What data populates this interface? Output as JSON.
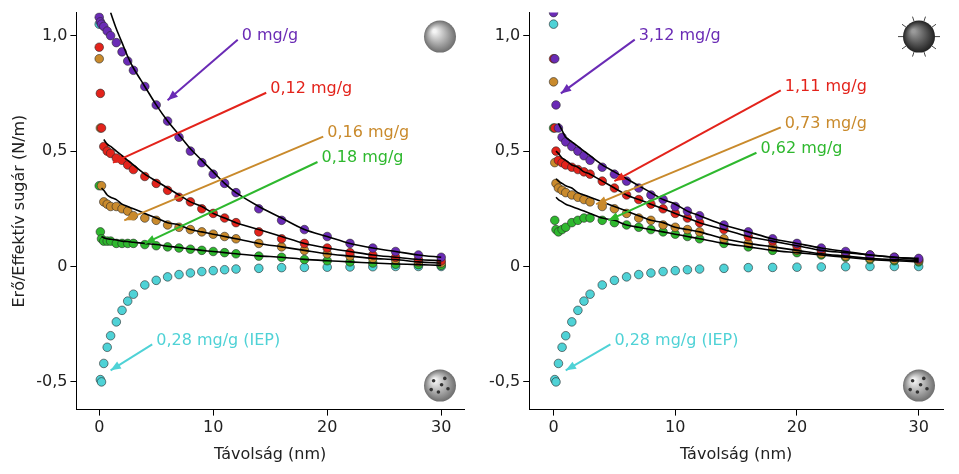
{
  "chart_data": [
    {
      "type": "scatter",
      "marker": "circle",
      "grid": false,
      "x_label": "Távolság (nm)",
      "y_label": "Erő/Effektív sugár (N/m)",
      "xlim": [
        -2,
        32
      ],
      "ylim": [
        -0.62,
        1.1
      ],
      "xticks": [
        0,
        10,
        20,
        30
      ],
      "yticks": [
        {
          "value": -0.5,
          "label": "-0,5"
        },
        0,
        {
          "value": 0.5,
          "label": "0,5"
        },
        {
          "value": 1,
          "label": "1,0"
        }
      ],
      "x": [
        0,
        0.1,
        0.2,
        0.4,
        0.7,
        1,
        1.5,
        2,
        2.5,
        3,
        4,
        5,
        6,
        7,
        8,
        9,
        10,
        11,
        12,
        14,
        16,
        18,
        20,
        22,
        24,
        26,
        28,
        30
      ],
      "series": [
        {
          "name": "0 mg/g",
          "color": "#6a2bb5",
          "values": [
            1.08,
            1.06,
            1.05,
            1.04,
            1.02,
            1.0,
            0.97,
            0.93,
            0.89,
            0.85,
            0.78,
            0.7,
            0.63,
            0.56,
            0.5,
            0.45,
            0.4,
            0.36,
            0.32,
            0.25,
            0.2,
            0.16,
            0.13,
            0.1,
            0.08,
            0.065,
            0.05,
            0.04
          ],
          "fit": [
            null,
            null,
            null,
            null,
            null,
            1.1,
            1.03,
            0.97,
            0.91,
            0.86,
            0.78,
            0.7,
            0.63,
            0.57,
            0.51,
            0.46,
            0.41,
            0.36,
            0.32,
            0.26,
            0.21,
            0.16,
            0.13,
            0.1,
            0.08,
            0.065,
            0.05,
            0.04
          ]
        },
        {
          "name": "0,12 mg/g",
          "color": "#e3231b",
          "values": [
            0.95,
            0.75,
            0.6,
            0.52,
            0.5,
            0.49,
            0.47,
            0.46,
            0.44,
            0.42,
            0.39,
            0.36,
            0.33,
            0.3,
            0.28,
            0.25,
            0.23,
            0.21,
            0.19,
            0.15,
            0.12,
            0.1,
            0.08,
            0.06,
            0.05,
            0.04,
            0.03,
            0.025
          ],
          "fit": [
            null,
            null,
            null,
            0.55,
            0.53,
            0.52,
            0.5,
            0.48,
            0.46,
            0.44,
            0.4,
            0.37,
            0.34,
            0.31,
            0.28,
            0.26,
            0.23,
            0.21,
            0.19,
            0.16,
            0.13,
            0.1,
            0.08,
            0.065,
            0.05,
            0.04,
            0.03,
            0.025
          ]
        },
        {
          "name": "0,16 mg/g",
          "color": "#c98a2c",
          "values": [
            0.9,
            0.6,
            0.35,
            0.28,
            0.27,
            0.26,
            0.26,
            0.25,
            0.24,
            0.22,
            0.21,
            0.2,
            0.18,
            0.17,
            0.16,
            0.15,
            0.14,
            0.13,
            0.12,
            0.1,
            0.085,
            0.07,
            0.055,
            0.045,
            0.035,
            0.03,
            0.02,
            0.015
          ],
          "fit": [
            null,
            null,
            0.34,
            0.33,
            0.31,
            0.3,
            0.29,
            0.27,
            0.26,
            0.25,
            0.23,
            0.21,
            0.19,
            0.18,
            0.16,
            0.15,
            0.14,
            0.13,
            0.12,
            0.1,
            0.085,
            0.07,
            0.055,
            0.045,
            0.035,
            0.03,
            0.02,
            0.015
          ]
        },
        {
          "name": "0,18 mg/g",
          "color": "#2eb82e",
          "values": [
            0.35,
            0.15,
            0.12,
            0.11,
            0.11,
            0.11,
            0.1,
            0.1,
            0.1,
            0.1,
            0.095,
            0.09,
            0.085,
            0.08,
            0.075,
            0.07,
            0.065,
            0.06,
            0.055,
            0.045,
            0.04,
            0.03,
            0.025,
            0.02,
            0.015,
            0.01,
            0.008,
            0.005
          ],
          "fit": [
            null,
            null,
            0.13,
            0.125,
            0.12,
            0.118,
            0.115,
            0.11,
            0.108,
            0.105,
            0.1,
            0.095,
            0.088,
            0.082,
            0.076,
            0.07,
            0.065,
            0.06,
            0.055,
            0.046,
            0.04,
            0.031,
            0.025,
            0.02,
            0.015,
            0.011,
            0.008,
            0.005
          ]
        },
        {
          "name": "0,28 mg/g (IEP)",
          "color": "#4fd2d6",
          "values": [
            1.05,
            -0.49,
            -0.5,
            -0.42,
            -0.35,
            -0.3,
            -0.24,
            -0.19,
            -0.15,
            -0.12,
            -0.08,
            -0.06,
            -0.045,
            -0.035,
            -0.028,
            -0.022,
            -0.018,
            -0.014,
            -0.011,
            -0.008,
            -0.005,
            -0.004,
            -0.003,
            -0.002,
            -0.001,
            0,
            0,
            0
          ]
        }
      ]
    },
    {
      "type": "scatter",
      "marker": "circle",
      "grid": false,
      "x_label": "Távolság (nm)",
      "xlim": [
        -2,
        32
      ],
      "ylim": [
        -0.62,
        1.1
      ],
      "xticks": [
        0,
        10,
        20,
        30
      ],
      "yticks": [
        {
          "value": -0.5,
          "label": "-0,5"
        },
        0,
        {
          "value": 0.5,
          "label": "0,5"
        },
        {
          "value": 1,
          "label": "1,0"
        }
      ],
      "x": [
        0,
        0.1,
        0.2,
        0.4,
        0.7,
        1,
        1.5,
        2,
        2.5,
        3,
        4,
        5,
        6,
        7,
        8,
        9,
        10,
        11,
        12,
        14,
        16,
        18,
        20,
        22,
        24,
        26,
        28,
        30
      ],
      "series": [
        {
          "name": "3,12 mg/g",
          "color": "#6a2bb5",
          "values": [
            1.1,
            0.9,
            0.7,
            0.6,
            0.56,
            0.54,
            0.52,
            0.5,
            0.48,
            0.46,
            0.43,
            0.4,
            0.37,
            0.34,
            0.31,
            0.29,
            0.26,
            0.24,
            0.22,
            0.18,
            0.15,
            0.12,
            0.1,
            0.08,
            0.065,
            0.05,
            0.04,
            0.035
          ],
          "fit": [
            null,
            null,
            null,
            0.62,
            0.59,
            0.56,
            0.54,
            0.52,
            0.5,
            0.48,
            0.44,
            0.41,
            0.38,
            0.35,
            0.32,
            0.29,
            0.27,
            0.24,
            0.22,
            0.18,
            0.15,
            0.12,
            0.1,
            0.08,
            0.065,
            0.05,
            0.04,
            0.035
          ]
        },
        {
          "name": "1,11 mg/g",
          "color": "#e3231b",
          "values": [
            0.9,
            0.6,
            0.5,
            0.46,
            0.45,
            0.44,
            0.43,
            0.42,
            0.41,
            0.4,
            0.37,
            0.34,
            0.31,
            0.29,
            0.27,
            0.25,
            0.23,
            0.21,
            0.19,
            0.16,
            0.13,
            0.11,
            0.09,
            0.07,
            0.06,
            0.05,
            0.04,
            0.03
          ],
          "fit": [
            null,
            null,
            0.5,
            0.49,
            0.47,
            0.46,
            0.44,
            0.43,
            0.41,
            0.4,
            0.37,
            0.34,
            0.31,
            0.29,
            0.27,
            0.25,
            0.23,
            0.21,
            0.19,
            0.16,
            0.13,
            0.11,
            0.09,
            0.07,
            0.06,
            0.05,
            0.04,
            0.03
          ]
        },
        {
          "name": "0,73 mg/g",
          "color": "#c98a2c",
          "values": [
            0.8,
            0.45,
            0.36,
            0.34,
            0.33,
            0.32,
            0.31,
            0.3,
            0.29,
            0.28,
            0.26,
            0.25,
            0.23,
            0.21,
            0.2,
            0.18,
            0.17,
            0.16,
            0.15,
            0.12,
            0.1,
            0.085,
            0.07,
            0.055,
            0.045,
            0.035,
            0.03,
            0.025
          ],
          "fit": [
            null,
            null,
            0.38,
            0.37,
            0.36,
            0.35,
            0.34,
            0.32,
            0.31,
            0.3,
            0.28,
            0.26,
            0.24,
            0.22,
            0.2,
            0.19,
            0.17,
            0.16,
            0.15,
            0.12,
            0.1,
            0.085,
            0.07,
            0.055,
            0.045,
            0.035,
            0.03,
            0.025
          ]
        },
        {
          "name": "0,62 mg/g",
          "color": "#2eb82e",
          "values": [
            0.6,
            0.2,
            0.16,
            0.15,
            0.16,
            0.17,
            0.19,
            0.2,
            0.21,
            0.21,
            0.2,
            0.19,
            0.18,
            0.17,
            0.16,
            0.15,
            0.14,
            0.13,
            0.12,
            0.1,
            0.085,
            0.07,
            0.06,
            0.05,
            0.04,
            0.03,
            0.025,
            0.02
          ],
          "fit": [
            null,
            null,
            0.3,
            0.29,
            0.28,
            0.27,
            0.26,
            0.25,
            0.24,
            0.23,
            0.21,
            0.2,
            0.18,
            0.17,
            0.16,
            0.15,
            0.14,
            0.13,
            0.12,
            0.1,
            0.085,
            0.07,
            0.06,
            0.05,
            0.04,
            0.03,
            0.025,
            0.02
          ]
        },
        {
          "name": "0,28 mg/g (IEP)",
          "color": "#4fd2d6",
          "values": [
            1.05,
            -0.49,
            -0.5,
            -0.42,
            -0.35,
            -0.3,
            -0.24,
            -0.19,
            -0.15,
            -0.12,
            -0.08,
            -0.06,
            -0.045,
            -0.035,
            -0.028,
            -0.022,
            -0.018,
            -0.014,
            -0.011,
            -0.008,
            -0.005,
            -0.004,
            -0.003,
            -0.002,
            -0.001,
            0,
            0,
            0
          ]
        }
      ]
    }
  ]
}
